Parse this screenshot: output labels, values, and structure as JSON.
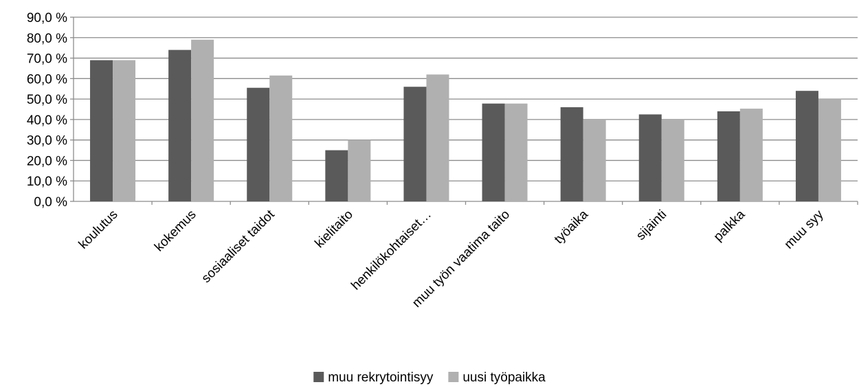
{
  "chart_data": {
    "type": "bar",
    "title": "",
    "xlabel": "",
    "ylabel": "",
    "ylim": [
      0,
      90
    ],
    "ytick_step": 10,
    "ytick_labels": [
      "0,0 %",
      "10,0 %",
      "20,0 %",
      "30,0 %",
      "40,0 %",
      "50,0 %",
      "60,0 %",
      "70,0 %",
      "80,0 %",
      "90,0 %"
    ],
    "grid": "horizontal",
    "legend_position": "bottom-center",
    "categories": [
      "koulutus",
      "kokemus",
      "sosiaaliset taidot",
      "kielitaito",
      "henkilökohtaiset…",
      "muu työn vaatima taito",
      "työaika",
      "sijainti",
      "palkka",
      "muu syy"
    ],
    "series": [
      {
        "name": "muu rekrytointisyy",
        "color": "#5a5a5a",
        "values": [
          69.0,
          74.0,
          55.5,
          25.0,
          56.0,
          47.8,
          46.0,
          42.5,
          44.0,
          54.0
        ]
      },
      {
        "name": "uusi työpaikka",
        "color": "#b0b0b0",
        "values": [
          69.0,
          79.0,
          61.5,
          30.0,
          62.0,
          47.8,
          40.0,
          40.0,
          45.3,
          50.0
        ]
      }
    ]
  }
}
